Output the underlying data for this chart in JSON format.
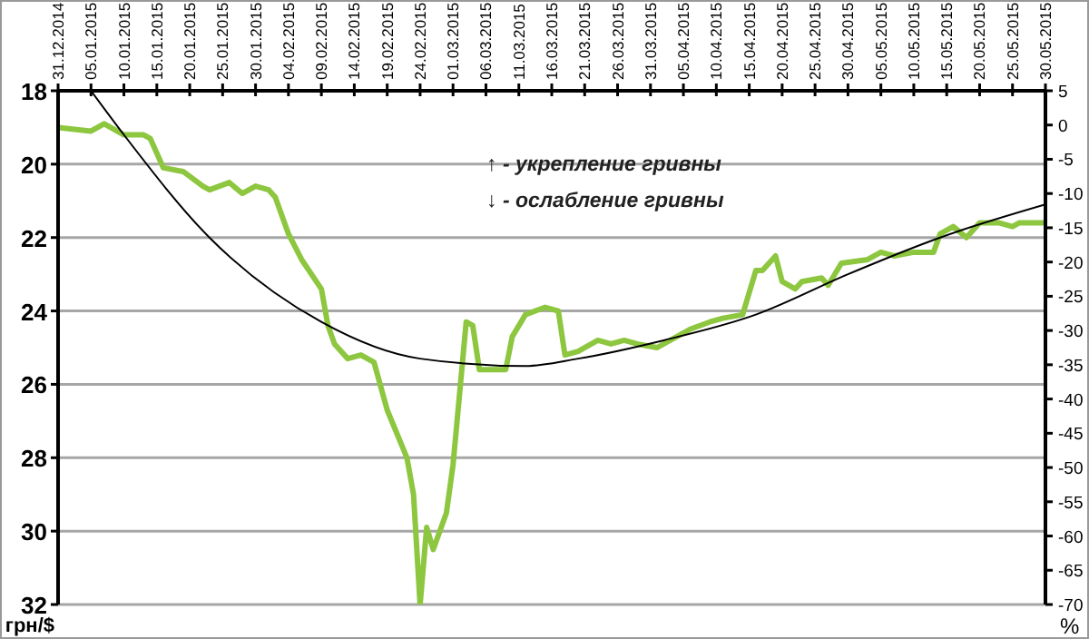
{
  "chart_data": {
    "type": "line",
    "ylabel": "грн/$",
    "y2label": "%",
    "grid": "y",
    "annotations": [
      "↑ - укрепление гривны",
      "↓ - ослабление гривны"
    ],
    "xlim": [
      "2014-12-31",
      "2015-05-30"
    ],
    "xticks": [
      {
        "value": "2014-12-31",
        "label": "31.12.2014"
      },
      {
        "value": "2015-01-05",
        "label": "05.01.2015"
      },
      {
        "value": "2015-01-10",
        "label": "10.01.2015"
      },
      {
        "value": "2015-01-15",
        "label": "15.01.2015"
      },
      {
        "value": "2015-01-20",
        "label": "20.01.2015"
      },
      {
        "value": "2015-01-25",
        "label": "25.01.2015"
      },
      {
        "value": "2015-01-30",
        "label": "30.01.2015"
      },
      {
        "value": "2015-02-04",
        "label": "04.02.2015"
      },
      {
        "value": "2015-02-09",
        "label": "09.02.2015"
      },
      {
        "value": "2015-02-14",
        "label": "14.02.2015"
      },
      {
        "value": "2015-02-19",
        "label": "19.02.2015"
      },
      {
        "value": "2015-02-24",
        "label": "24.02.2015"
      },
      {
        "value": "2015-03-01",
        "label": "01.03.2015"
      },
      {
        "value": "2015-03-06",
        "label": "06.03.2015"
      },
      {
        "value": "2015-03-11",
        "label": "11.03.2015"
      },
      {
        "value": "2015-03-16",
        "label": "16.03.2015"
      },
      {
        "value": "2015-03-21",
        "label": "21.03.2015"
      },
      {
        "value": "2015-03-26",
        "label": "26.03.2015"
      },
      {
        "value": "2015-03-31",
        "label": "31.03.2015"
      },
      {
        "value": "2015-04-05",
        "label": "05.04.2015"
      },
      {
        "value": "2015-04-10",
        "label": "10.04.2015"
      },
      {
        "value": "2015-04-15",
        "label": "15.04.2015"
      },
      {
        "value": "2015-04-20",
        "label": "20.04.2015"
      },
      {
        "value": "2015-04-25",
        "label": "25.04.2015"
      },
      {
        "value": "2015-04-30",
        "label": "30.04.2015"
      },
      {
        "value": "2015-05-05",
        "label": "05.05.2015"
      },
      {
        "value": "2015-05-10",
        "label": "10.05.2015"
      },
      {
        "value": "2015-05-15",
        "label": "15.05.2015"
      },
      {
        "value": "2015-05-20",
        "label": "20.05.2015"
      },
      {
        "value": "2015-05-25",
        "label": "25.05.2015"
      },
      {
        "value": "2015-05-30",
        "label": "30.05.2015"
      }
    ],
    "ylim": [
      32,
      18
    ],
    "yticks": [
      18,
      20,
      22,
      24,
      26,
      28,
      30,
      32
    ],
    "y2lim": [
      -70,
      5
    ],
    "y2ticks": [
      5,
      0,
      -5,
      -10,
      -15,
      -20,
      -25,
      -30,
      -35,
      -40,
      -45,
      -50,
      -55,
      -60,
      -65,
      -70
    ],
    "series": [
      {
        "color": "#8dc63f",
        "x": [
          "2014-12-31",
          "2015-01-05",
          "2015-01-07",
          "2015-01-10",
          "2015-01-13",
          "2015-01-14",
          "2015-01-16",
          "2015-01-19",
          "2015-01-22",
          "2015-01-23",
          "2015-01-26",
          "2015-01-28",
          "2015-01-30",
          "2015-02-01",
          "2015-02-02",
          "2015-02-04",
          "2015-02-06",
          "2015-02-09",
          "2015-02-10",
          "2015-02-11",
          "2015-02-13",
          "2015-02-15",
          "2015-02-17",
          "2015-02-19",
          "2015-02-22",
          "2015-02-23",
          "2015-02-24",
          "2015-02-25",
          "2015-02-26",
          "2015-02-28",
          "2015-03-01",
          "2015-03-03",
          "2015-03-04",
          "2015-03-05",
          "2015-03-09",
          "2015-03-10",
          "2015-03-12",
          "2015-03-15",
          "2015-03-17",
          "2015-03-18",
          "2015-03-20",
          "2015-03-23",
          "2015-03-25",
          "2015-03-27",
          "2015-03-29",
          "2015-04-01",
          "2015-04-03",
          "2015-04-06",
          "2015-04-09",
          "2015-04-11",
          "2015-04-14",
          "2015-04-16",
          "2015-04-17",
          "2015-04-19",
          "2015-04-20",
          "2015-04-22",
          "2015-04-23",
          "2015-04-26",
          "2015-04-27",
          "2015-04-29",
          "2015-05-03",
          "2015-05-05",
          "2015-05-07",
          "2015-05-10",
          "2015-05-13",
          "2015-05-14",
          "2015-05-16",
          "2015-05-18",
          "2015-05-20",
          "2015-05-23",
          "2015-05-25",
          "2015-05-26",
          "2015-05-30"
        ],
        "values": [
          19.0,
          19.1,
          18.9,
          19.2,
          19.2,
          19.3,
          20.1,
          20.2,
          20.6,
          20.7,
          20.5,
          20.8,
          20.6,
          20.7,
          20.9,
          21.9,
          22.6,
          23.4,
          24.4,
          24.9,
          25.3,
          25.2,
          25.4,
          26.7,
          28.0,
          29.0,
          32.0,
          29.9,
          30.5,
          29.5,
          28.2,
          24.3,
          24.4,
          25.6,
          25.6,
          24.7,
          24.1,
          23.9,
          24.0,
          25.2,
          25.1,
          24.8,
          24.9,
          24.8,
          24.9,
          25.0,
          24.8,
          24.5,
          24.3,
          24.2,
          24.1,
          22.9,
          22.9,
          22.5,
          23.2,
          23.4,
          23.2,
          23.1,
          23.3,
          22.7,
          22.6,
          22.4,
          22.5,
          22.4,
          22.4,
          21.9,
          21.7,
          22.0,
          21.6,
          21.6,
          21.7,
          21.6,
          21.6
        ]
      },
      {
        "color": "#000000",
        "x": [
          "2015-01-05",
          "2015-01-10",
          "2015-01-23",
          "2015-02-09",
          "2015-02-24",
          "2015-03-12",
          "2015-03-20",
          "2015-04-02",
          "2015-04-16",
          "2015-04-30",
          "2015-05-14",
          "2015-05-30"
        ],
        "values": [
          18.0,
          19.2,
          22.0,
          24.3,
          25.3,
          25.5,
          25.3,
          24.8,
          24.1,
          23.0,
          22.0,
          21.1
        ]
      }
    ]
  }
}
